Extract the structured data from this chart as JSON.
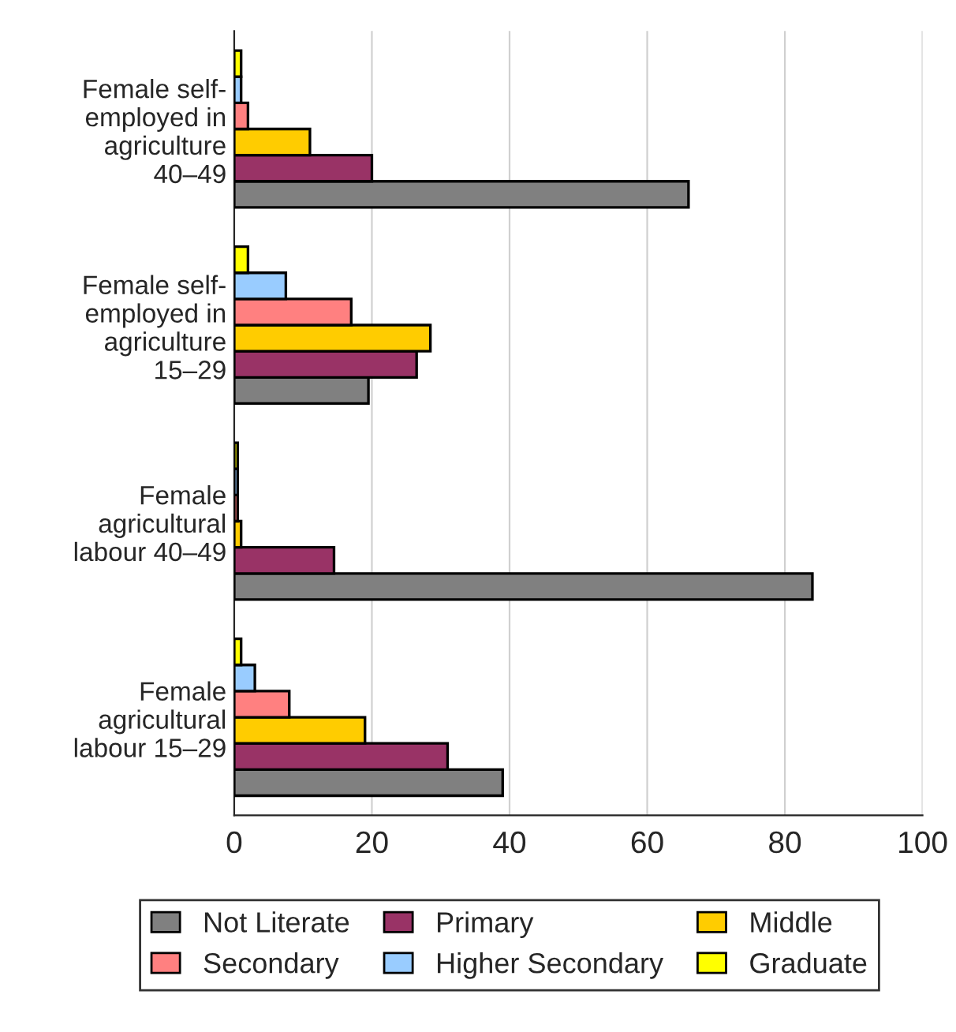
{
  "chart_data": {
    "type": "bar",
    "orientation": "horizontal",
    "categories": [
      "Female self-\nemployed in\nagriculture\n40–49",
      "Female self-\nemployed in\nagriculture\n15–29",
      "Female\nagricultural\nlabour 40–49",
      "Female\nagricultural\nlabour 15–29"
    ],
    "series": [
      {
        "name": "Not Literate",
        "color": "#808080",
        "values": [
          66,
          19.5,
          84,
          39
        ]
      },
      {
        "name": "Primary",
        "color": "#993366",
        "values": [
          20,
          26.5,
          14.5,
          31
        ]
      },
      {
        "name": "Middle",
        "color": "#ffcc00",
        "values": [
          11,
          28.5,
          1,
          19
        ]
      },
      {
        "name": "Secondary",
        "color": "#ff8080",
        "values": [
          2,
          17,
          0.5,
          8
        ]
      },
      {
        "name": "Higher Secondary",
        "color": "#99ccff",
        "values": [
          1,
          7.5,
          0.5,
          3
        ]
      },
      {
        "name": "Graduate",
        "color": "#ffff00",
        "values": [
          1,
          2,
          0.5,
          1
        ]
      }
    ],
    "xlim": [
      0,
      100
    ],
    "xticks": [
      0,
      20,
      40,
      60,
      80,
      100
    ],
    "grid": "x",
    "legend": "bottom"
  }
}
